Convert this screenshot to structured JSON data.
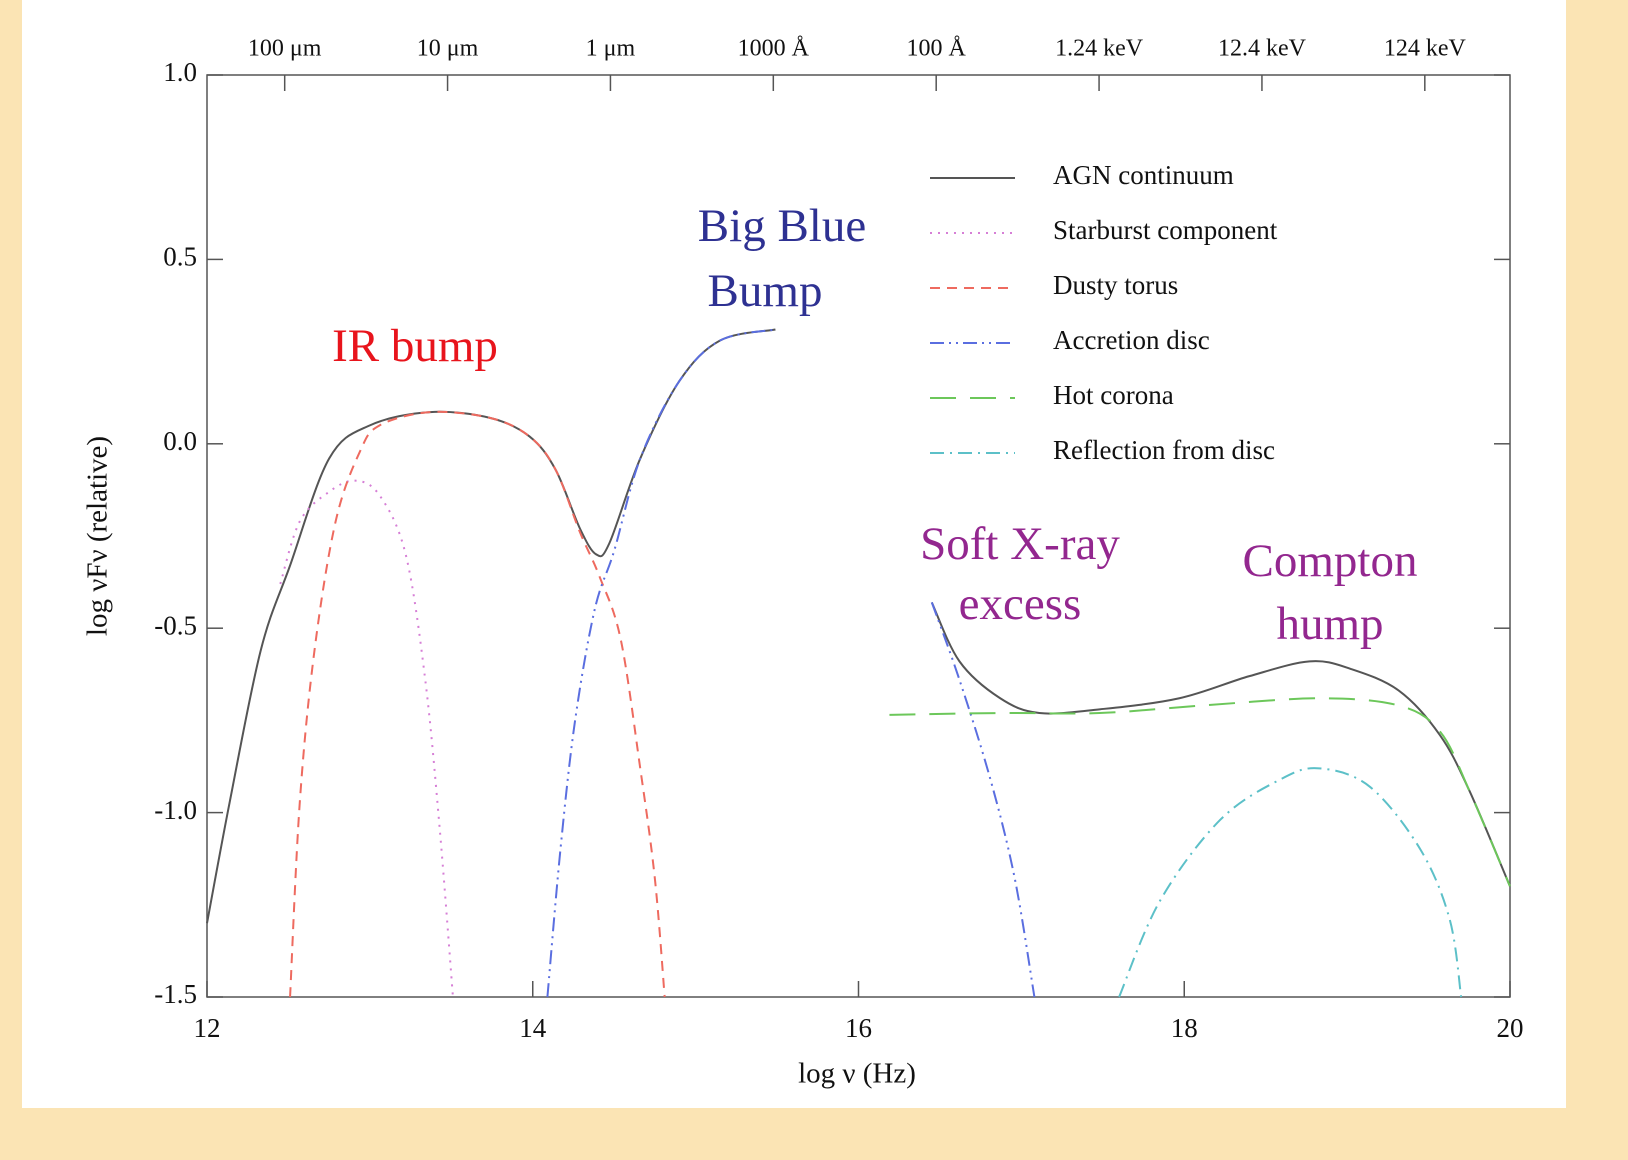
{
  "chart_data": {
    "type": "line",
    "x_label": "log ν (Hz)",
    "y_label": "log νFν  (relative)",
    "xlim": [
      12,
      20
    ],
    "ylim": [
      -1.5,
      1.0
    ],
    "xticks": [
      12,
      14,
      16,
      18,
      20
    ],
    "yticks": [
      {
        "value": 1.0,
        "label": "1.0"
      },
      {
        "value": 0.5,
        "label": "0.5"
      },
      {
        "value": 0.0,
        "label": "0.0"
      },
      {
        "value": -0.5,
        "label": "-0.5"
      },
      {
        "value": -1.0,
        "label": "-1.0"
      },
      {
        "value": -1.5,
        "label": "-1.5"
      }
    ],
    "top_xticks": [
      {
        "value": 12.477,
        "label": "100 μm"
      },
      {
        "value": 13.477,
        "label": "10 μm"
      },
      {
        "value": 14.477,
        "label": "1 μm"
      },
      {
        "value": 15.477,
        "label": "1000 Å"
      },
      {
        "value": 16.477,
        "label": "100 Å"
      },
      {
        "value": 17.477,
        "label": "1.24 keV"
      },
      {
        "value": 18.477,
        "label": "12.4 keV"
      },
      {
        "value": 19.477,
        "label": "124 keV"
      }
    ],
    "legend": "upper right",
    "series": [
      {
        "name": "AGN continuum",
        "color": "#555555",
        "dash": "solid",
        "x": [
          12,
          12.14,
          12.33,
          12.51,
          12.75,
          13.0,
          13.37,
          13.74,
          13.98,
          14.14,
          14.29,
          14.39,
          14.47,
          14.66,
          14.9,
          15.15,
          15.49,
          null,
          16.45,
          16.62,
          16.87,
          17.11,
          17.48,
          17.97,
          18.4,
          18.77,
          19.02,
          19.32,
          19.57,
          19.75,
          20
        ],
        "values": [
          -1.3,
          -0.97,
          -0.56,
          -0.33,
          -0.04,
          0.05,
          0.086,
          0.07,
          0.02,
          -0.07,
          -0.23,
          -0.3,
          -0.27,
          -0.04,
          0.17,
          0.28,
          0.31,
          null,
          -0.43,
          -0.59,
          -0.69,
          -0.73,
          -0.72,
          -0.69,
          -0.63,
          -0.59,
          -0.61,
          -0.67,
          -0.79,
          -0.94,
          -1.2
        ]
      },
      {
        "name": "Starburst component",
        "color": "#d67fd6",
        "dash": "dotted",
        "x": [
          12.45,
          12.57,
          12.75,
          12.91,
          13.06,
          13.22,
          13.34,
          13.43,
          13.51
        ],
        "values": [
          -0.38,
          -0.21,
          -0.13,
          -0.1,
          -0.14,
          -0.3,
          -0.64,
          -1.05,
          -1.5
        ]
      },
      {
        "name": "Dusty torus",
        "color": "#ee6a5f",
        "dash": "dashed",
        "x": [
          12.51,
          12.57,
          12.66,
          12.79,
          12.94,
          13.06,
          13.37,
          13.74,
          13.98,
          14.14,
          14.29,
          14.41,
          14.54,
          14.66,
          14.75,
          14.81
        ],
        "values": [
          -1.5,
          -0.97,
          -0.56,
          -0.21,
          -0.02,
          0.05,
          0.086,
          0.07,
          0.02,
          -0.07,
          -0.24,
          -0.36,
          -0.53,
          -0.88,
          -1.18,
          -1.5
        ]
      },
      {
        "name": "Accretion disc",
        "color": "#5a6ee0",
        "dash": "dash-dot-dot",
        "x": [
          14.09,
          14.17,
          14.26,
          14.38,
          14.5,
          14.66,
          14.9,
          15.15,
          15.49,
          null,
          16.45,
          16.62,
          16.81,
          16.96,
          17.08
        ],
        "values": [
          -1.5,
          -1.1,
          -0.75,
          -0.45,
          -0.29,
          -0.04,
          0.17,
          0.28,
          0.31,
          null,
          -0.43,
          -0.64,
          -0.91,
          -1.18,
          -1.5
        ]
      },
      {
        "name": "Hot corona",
        "color": "#6cc75a",
        "dash": "long-dash",
        "x": [
          16.19,
          16.87,
          17.48,
          18.1,
          18.83,
          19.32,
          19.57,
          19.75,
          20
        ],
        "values": [
          -0.735,
          -0.73,
          -0.73,
          -0.71,
          -0.69,
          -0.71,
          -0.78,
          -0.94,
          -1.2
        ]
      },
      {
        "name": "Reflection from disc",
        "color": "#5cc0c8",
        "dash": "dash-dot",
        "x": [
          17.6,
          17.85,
          18.22,
          18.59,
          18.83,
          19.14,
          19.45,
          19.63,
          19.7
        ],
        "values": [
          -1.5,
          -1.24,
          -1.02,
          -0.91,
          -0.88,
          -0.93,
          -1.1,
          -1.29,
          -1.5
        ]
      }
    ],
    "annotations": [
      {
        "text": [
          "IR bump"
        ],
        "color": "#e8141c"
      },
      {
        "text": [
          "Big Blue",
          "Bump"
        ],
        "color": "#2e3192"
      },
      {
        "text": [
          "Soft X-ray",
          "excess"
        ],
        "color": "#93278f"
      },
      {
        "text": [
          "Compton",
          "hump"
        ],
        "color": "#93278f"
      }
    ]
  }
}
